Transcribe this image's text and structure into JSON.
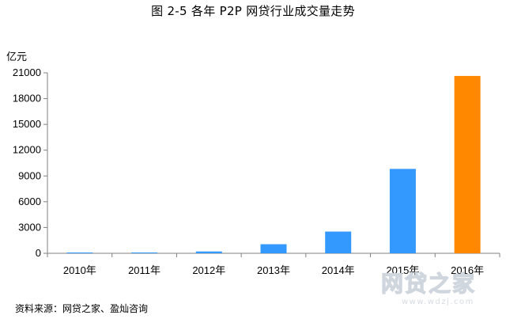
{
  "title": "图 2-5   各年 P2P 网贷行业成交量走势",
  "source": "资料来源：网贷之家、盈灿咨询",
  "watermark": {
    "main": "网贷之家",
    "sub": "www.wdzj.com"
  },
  "chart_data": {
    "type": "bar",
    "title": "图 2-5   各年 P2P 网贷行业成交量走势",
    "ylabel": "亿元",
    "xlabel": "",
    "categories": [
      "2010年",
      "2011年",
      "2012年",
      "2013年",
      "2014年",
      "2015年",
      "2016年"
    ],
    "values": [
      14,
      96,
      212,
      1058,
      2528,
      9823,
      20639
    ],
    "bar_colors": [
      "#3399ff",
      "#3399ff",
      "#3399ff",
      "#3399ff",
      "#3399ff",
      "#3399ff",
      "#ff8800"
    ],
    "ylim": [
      0,
      21000
    ],
    "yticks": [
      0,
      3000,
      6000,
      9000,
      12000,
      15000,
      18000,
      21000
    ],
    "grid": false,
    "legend": "none"
  }
}
